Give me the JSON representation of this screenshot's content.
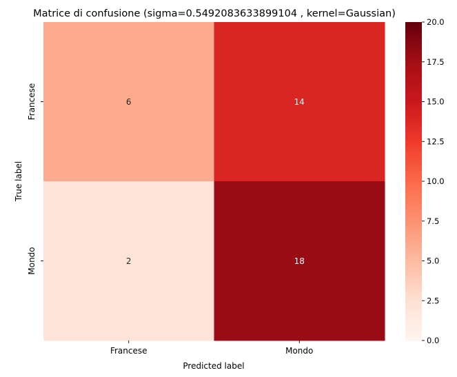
{
  "chart_data": {
    "type": "heatmap",
    "title": "Matrice di confusione (sigma=0.5492083633899104 , kernel=Gaussian)",
    "xlabel": "Predicted label",
    "ylabel": "True label",
    "x_categories": [
      "Francese",
      "Mondo"
    ],
    "y_categories": [
      "Francese",
      "Mondo"
    ],
    "values": [
      [
        6,
        14
      ],
      [
        2,
        18
      ]
    ],
    "colormap": "Reds",
    "color_range": [
      0,
      20
    ],
    "colorbar_ticks": [
      "0.0",
      "2.5",
      "5.0",
      "7.5",
      "10.0",
      "12.5",
      "15.0",
      "17.5",
      "20.0"
    ],
    "annot_colors": {
      "light_cells": "#262626",
      "dark_cells": "#ffffff"
    }
  }
}
